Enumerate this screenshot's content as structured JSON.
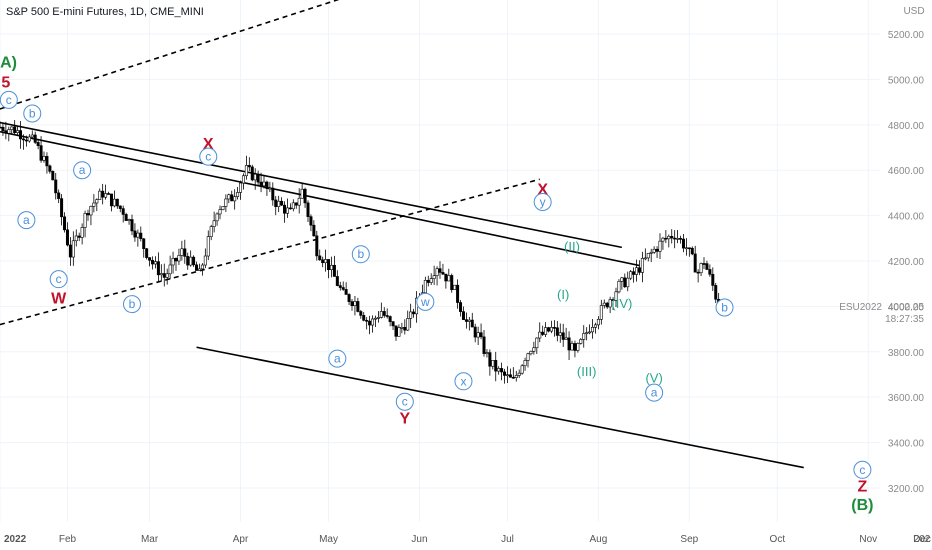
{
  "header": {
    "title": "S&P 500 E-mini Futures, 1D, CME_MINI"
  },
  "currency": "USD",
  "price_tag": {
    "symbol": "ESU2022",
    "price": "4002.25",
    "countdown": "18:27:35"
  },
  "colors": {
    "candle": "#000000",
    "wave_circle": "#4a90d9",
    "wave_red": "#c0132b",
    "wave_green": "#1e8c3a",
    "wave_teal": "#27a68a",
    "grid": "#f0f3fa"
  },
  "chart_data": {
    "type": "candlestick",
    "y_axis": {
      "label": "USD",
      "range": [
        3050,
        5350
      ],
      "ticks": [
        3200,
        3400,
        3600,
        3800,
        4000,
        4200,
        4400,
        4600,
        4800,
        5000,
        5200
      ]
    },
    "x_axis": {
      "ticks": [
        "2022",
        "Feb",
        "Mar",
        "Apr",
        "May",
        "Jun",
        "Jul",
        "Aug",
        "Sep",
        "Oct",
        "Nov",
        "Dec",
        "202"
      ]
    },
    "grid": true,
    "price_path": [
      [
        0,
        4790
      ],
      [
        5,
        4780
      ],
      [
        12,
        4720
      ],
      [
        18,
        4560
      ],
      [
        24,
        4230
      ],
      [
        30,
        4430
      ],
      [
        35,
        4500
      ],
      [
        42,
        4420
      ],
      [
        47,
        4310
      ],
      [
        52,
        4190
      ],
      [
        56,
        4130
      ],
      [
        62,
        4240
      ],
      [
        68,
        4140
      ],
      [
        74,
        4430
      ],
      [
        79,
        4480
      ],
      [
        84,
        4600
      ],
      [
        89,
        4550
      ],
      [
        94,
        4460
      ],
      [
        99,
        4410
      ],
      [
        103,
        4510
      ],
      [
        108,
        4250
      ],
      [
        112,
        4180
      ],
      [
        117,
        4050
      ],
      [
        121,
        4020
      ],
      [
        126,
        3920
      ],
      [
        130,
        3980
      ],
      [
        135,
        3880
      ],
      [
        140,
        3950
      ],
      [
        145,
        4110
      ],
      [
        149,
        4180
      ],
      [
        154,
        4100
      ],
      [
        159,
        3930
      ],
      [
        163,
        3870
      ],
      [
        167,
        3750
      ],
      [
        171,
        3700
      ],
      [
        175,
        3670
      ],
      [
        179,
        3780
      ],
      [
        183,
        3860
      ],
      [
        188,
        3900
      ],
      [
        193,
        3850
      ],
      [
        196,
        3790
      ],
      [
        201,
        3910
      ],
      [
        206,
        4000
      ],
      [
        211,
        4090
      ],
      [
        216,
        4140
      ],
      [
        221,
        4220
      ],
      [
        226,
        4290
      ],
      [
        230,
        4320
      ],
      [
        234,
        4260
      ],
      [
        238,
        4150
      ],
      [
        240,
        4200
      ],
      [
        243,
        4090
      ],
      [
        245,
        4002
      ]
    ],
    "wave_labels": [
      {
        "text": "(A)",
        "color": "green",
        "day": 2,
        "price": 5080
      },
      {
        "text": "5",
        "color": "red",
        "day": 2,
        "price": 4990
      },
      {
        "text": "c",
        "color": "blue",
        "day": 3,
        "price": 4910,
        "circle": true
      },
      {
        "text": "b",
        "color": "blue",
        "day": 11,
        "price": 4850,
        "circle": true
      },
      {
        "text": "a",
        "color": "blue",
        "day": 28,
        "price": 4600,
        "circle": true
      },
      {
        "text": "a",
        "color": "blue",
        "day": 9,
        "price": 4380,
        "circle": true
      },
      {
        "text": "c",
        "color": "blue",
        "day": 20,
        "price": 4120,
        "circle": true
      },
      {
        "text": "W",
        "color": "red",
        "day": 20,
        "price": 4040
      },
      {
        "text": "b",
        "color": "blue",
        "day": 45,
        "price": 4010,
        "circle": true
      },
      {
        "text": "X",
        "color": "red",
        "day": 71,
        "price": 4720
      },
      {
        "text": "c",
        "color": "blue",
        "day": 71,
        "price": 4660,
        "circle": true
      },
      {
        "text": "b",
        "color": "blue",
        "day": 123,
        "price": 4230,
        "circle": true
      },
      {
        "text": "a",
        "color": "blue",
        "day": 115,
        "price": 3770,
        "circle": true
      },
      {
        "text": "w",
        "color": "blue",
        "day": 145,
        "price": 4020,
        "circle": true
      },
      {
        "text": "c",
        "color": "blue",
        "day": 138,
        "price": 3580,
        "circle": true
      },
      {
        "text": "Y",
        "color": "red",
        "day": 138,
        "price": 3510
      },
      {
        "text": "x",
        "color": "blue",
        "day": 158,
        "price": 3670,
        "circle": true
      },
      {
        "text": "X",
        "color": "red",
        "day": 185,
        "price": 4520
      },
      {
        "text": "y",
        "color": "blue",
        "day": 185,
        "price": 4460,
        "circle": true
      },
      {
        "text": "(II)",
        "color": "teal",
        "day": 195,
        "price": 4270
      },
      {
        "text": "(I)",
        "color": "teal",
        "day": 192,
        "price": 4060
      },
      {
        "text": "(IV)",
        "color": "teal",
        "day": 212,
        "price": 4020
      },
      {
        "text": "b",
        "color": "blue",
        "day": 247,
        "price": 3995,
        "circle": true
      },
      {
        "text": "(III)",
        "color": "teal",
        "day": 200,
        "price": 3720
      },
      {
        "text": "(V)",
        "color": "teal",
        "day": 223,
        "price": 3690
      },
      {
        "text": "a",
        "color": "blue",
        "day": 223,
        "price": 3620,
        "circle": true
      },
      {
        "text": "c",
        "color": "blue",
        "day": 294,
        "price": 3280,
        "circle": true
      },
      {
        "text": "Z",
        "color": "red",
        "day": 294,
        "price": 3210
      },
      {
        "text": "(B)",
        "color": "green",
        "day": 294,
        "price": 3130
      }
    ],
    "trend_lines": [
      {
        "style": "solid",
        "from": [
          0,
          4810
        ],
        "to": [
          212,
          4260
        ]
      },
      {
        "style": "solid",
        "from": [
          0,
          4770
        ],
        "to": [
          218,
          4180
        ]
      },
      {
        "style": "solid",
        "from": [
          67,
          3820
        ],
        "to": [
          274,
          3290
        ]
      },
      {
        "style": "dashed",
        "from": [
          0,
          3920
        ],
        "to": [
          184,
          4560
        ]
      },
      {
        "style": "dashed",
        "from": [
          0,
          4870
        ],
        "to": [
          134,
          5430
        ]
      }
    ]
  }
}
